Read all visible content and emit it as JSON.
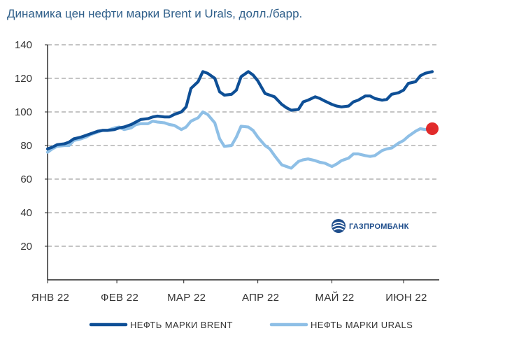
{
  "title": "Динамика цен нефти марки Brent и Urals, долл./барр.",
  "logo": {
    "text": "ГАЗПРОМБАНК",
    "icon": "gazprombank-logo-icon"
  },
  "colors": {
    "brent": "#0e4f96",
    "urals": "#8ebfe6",
    "marker": "#e02020",
    "grid": "#b0b0b0",
    "logo": "#1f4e8c"
  },
  "chart_data": {
    "type": "line",
    "title": "Динамика цен нефти марки Brent и Urals, долл./барр.",
    "xlabel": "",
    "ylabel": "",
    "ylim": [
      0,
      140
    ],
    "yticks": [
      20,
      40,
      60,
      80,
      100,
      120,
      140
    ],
    "grid": true,
    "legend_position": "bottom",
    "x_date_range": [
      "2022-01-03",
      "2022-06-06"
    ],
    "x_tick_labels": [
      {
        "label": "ЯНВ 22",
        "date": "2022-01-03"
      },
      {
        "label": "ФЕВ 22",
        "date": "2022-02-01"
      },
      {
        "label": "МАР 22",
        "date": "2022-03-01"
      },
      {
        "label": "АПР 22",
        "date": "2022-04-01"
      },
      {
        "label": "МАЙ 22",
        "date": "2022-05-02"
      },
      {
        "label": "ИЮН 22",
        "date": "2022-06-01"
      }
    ],
    "series": [
      {
        "name": "НЕФТЬ МАРКИ BRENT",
        "color": "#0e4f96",
        "points": [
          [
            "2022-01-03",
            78
          ],
          [
            "2022-01-05",
            79
          ],
          [
            "2022-01-07",
            80.5
          ],
          [
            "2022-01-10",
            81
          ],
          [
            "2022-01-12",
            82
          ],
          [
            "2022-01-14",
            84
          ],
          [
            "2022-01-17",
            85
          ],
          [
            "2022-01-19",
            86
          ],
          [
            "2022-01-21",
            87
          ],
          [
            "2022-01-24",
            88.5
          ],
          [
            "2022-01-26",
            89
          ],
          [
            "2022-01-28",
            89
          ],
          [
            "2022-01-31",
            89.5
          ],
          [
            "2022-02-02",
            90.5
          ],
          [
            "2022-02-04",
            91
          ],
          [
            "2022-02-07",
            92.5
          ],
          [
            "2022-02-09",
            94
          ],
          [
            "2022-02-11",
            95.5
          ],
          [
            "2022-02-14",
            96
          ],
          [
            "2022-02-16",
            97
          ],
          [
            "2022-02-18",
            97.5
          ],
          [
            "2022-02-21",
            97
          ],
          [
            "2022-02-23",
            97
          ],
          [
            "2022-02-25",
            98.5
          ],
          [
            "2022-02-28",
            100
          ],
          [
            "2022-03-02",
            103
          ],
          [
            "2022-03-04",
            114
          ],
          [
            "2022-03-07",
            118
          ],
          [
            "2022-03-09",
            124
          ],
          [
            "2022-03-11",
            123
          ],
          [
            "2022-03-14",
            120
          ],
          [
            "2022-03-16",
            112
          ],
          [
            "2022-03-18",
            110
          ],
          [
            "2022-03-21",
            110.5
          ],
          [
            "2022-03-23",
            113
          ],
          [
            "2022-03-25",
            121
          ],
          [
            "2022-03-28",
            124
          ],
          [
            "2022-03-30",
            122
          ],
          [
            "2022-04-01",
            118.5
          ],
          [
            "2022-04-04",
            111
          ],
          [
            "2022-04-06",
            110
          ],
          [
            "2022-04-08",
            109
          ],
          [
            "2022-04-11",
            104.5
          ],
          [
            "2022-04-13",
            102.5
          ],
          [
            "2022-04-15",
            101
          ],
          [
            "2022-04-18",
            101.5
          ],
          [
            "2022-04-20",
            106
          ],
          [
            "2022-04-22",
            107
          ],
          [
            "2022-04-25",
            109
          ],
          [
            "2022-04-27",
            108
          ],
          [
            "2022-04-29",
            106.5
          ],
          [
            "2022-05-02",
            104.5
          ],
          [
            "2022-05-04",
            103.5
          ],
          [
            "2022-05-06",
            103
          ],
          [
            "2022-05-09",
            103.5
          ],
          [
            "2022-05-11",
            106
          ],
          [
            "2022-05-13",
            107
          ],
          [
            "2022-05-16",
            109.5
          ],
          [
            "2022-05-18",
            109.5
          ],
          [
            "2022-05-20",
            108
          ],
          [
            "2022-05-23",
            107
          ],
          [
            "2022-05-25",
            107.5
          ],
          [
            "2022-05-27",
            110.5
          ],
          [
            "2022-05-30",
            111.5
          ],
          [
            "2022-06-01",
            113
          ],
          [
            "2022-06-03",
            117
          ],
          [
            "2022-06-06",
            118
          ],
          [
            "2022-06-08",
            121.5
          ],
          [
            "2022-06-10",
            123
          ],
          [
            "2022-06-13",
            124
          ]
        ]
      },
      {
        "name": "НЕФТЬ МАРКИ URALS",
        "color": "#8ebfe6",
        "points": [
          [
            "2022-01-03",
            76
          ],
          [
            "2022-01-05",
            78
          ],
          [
            "2022-01-07",
            79.5
          ],
          [
            "2022-01-10",
            80
          ],
          [
            "2022-01-12",
            80
          ],
          [
            "2022-01-14",
            83
          ],
          [
            "2022-01-17",
            84
          ],
          [
            "2022-01-19",
            85
          ],
          [
            "2022-01-21",
            86.5
          ],
          [
            "2022-01-24",
            88
          ],
          [
            "2022-01-26",
            89
          ],
          [
            "2022-01-28",
            89
          ],
          [
            "2022-01-31",
            90.5
          ],
          [
            "2022-02-02",
            91
          ],
          [
            "2022-02-04",
            89.5
          ],
          [
            "2022-02-07",
            90.5
          ],
          [
            "2022-02-09",
            92.5
          ],
          [
            "2022-02-11",
            93
          ],
          [
            "2022-02-14",
            93
          ],
          [
            "2022-02-16",
            94.5
          ],
          [
            "2022-02-18",
            94
          ],
          [
            "2022-02-21",
            93.5
          ],
          [
            "2022-02-23",
            92.5
          ],
          [
            "2022-02-25",
            92
          ],
          [
            "2022-02-28",
            89.5
          ],
          [
            "2022-03-02",
            91
          ],
          [
            "2022-03-04",
            94.5
          ],
          [
            "2022-03-07",
            96.5
          ],
          [
            "2022-03-09",
            100
          ],
          [
            "2022-03-11",
            98.5
          ],
          [
            "2022-03-14",
            93.5
          ],
          [
            "2022-03-16",
            84
          ],
          [
            "2022-03-18",
            79.5
          ],
          [
            "2022-03-21",
            80
          ],
          [
            "2022-03-23",
            85
          ],
          [
            "2022-03-25",
            91.5
          ],
          [
            "2022-03-28",
            91
          ],
          [
            "2022-03-30",
            89
          ],
          [
            "2022-04-01",
            85
          ],
          [
            "2022-04-04",
            80
          ],
          [
            "2022-04-06",
            78
          ],
          [
            "2022-04-08",
            74
          ],
          [
            "2022-04-11",
            68.5
          ],
          [
            "2022-04-13",
            67.5
          ],
          [
            "2022-04-15",
            66.5
          ],
          [
            "2022-04-18",
            70.5
          ],
          [
            "2022-04-20",
            71.5
          ],
          [
            "2022-04-22",
            72
          ],
          [
            "2022-04-25",
            71
          ],
          [
            "2022-04-27",
            70
          ],
          [
            "2022-04-29",
            69.5
          ],
          [
            "2022-05-02",
            67.5
          ],
          [
            "2022-05-04",
            69
          ],
          [
            "2022-05-06",
            71
          ],
          [
            "2022-05-09",
            72.5
          ],
          [
            "2022-05-11",
            75
          ],
          [
            "2022-05-13",
            75
          ],
          [
            "2022-05-16",
            74
          ],
          [
            "2022-05-18",
            73.5
          ],
          [
            "2022-05-20",
            74
          ],
          [
            "2022-05-23",
            77
          ],
          [
            "2022-05-25",
            78
          ],
          [
            "2022-05-27",
            78.5
          ],
          [
            "2022-05-30",
            81.5
          ],
          [
            "2022-06-01",
            83
          ],
          [
            "2022-06-03",
            85.5
          ],
          [
            "2022-06-06",
            88.5
          ],
          [
            "2022-06-08",
            90
          ],
          [
            "2022-06-10",
            89.5
          ],
          [
            "2022-06-13",
            90
          ]
        ]
      }
    ],
    "highlight_point": {
      "series": "НЕФТЬ МАРКИ URALS",
      "x": "2022-06-13",
      "y": 90,
      "color": "#e02020"
    }
  }
}
